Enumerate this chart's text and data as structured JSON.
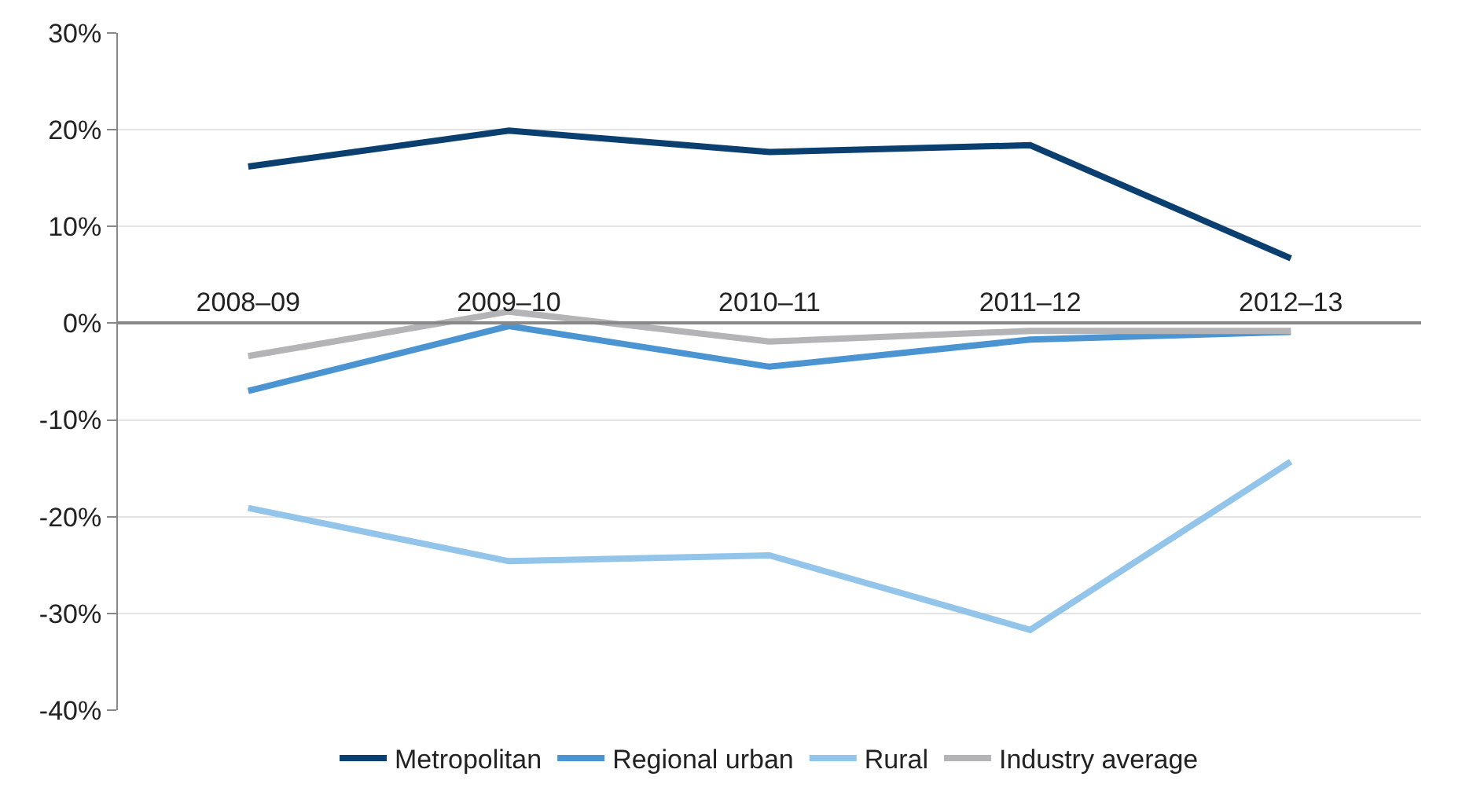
{
  "chart_data": {
    "type": "line",
    "categories": [
      "2008–09",
      "2009–10",
      "2010–11",
      "2011–12",
      "2012–13"
    ],
    "series": [
      {
        "name": "Metropolitan",
        "color": "#0b3f70",
        "values": [
          16.2,
          19.9,
          17.7,
          18.4,
          6.7
        ]
      },
      {
        "name": "Regional urban",
        "color": "#4b94d2",
        "values": [
          -7.0,
          -0.3,
          -4.5,
          -1.7,
          -0.9
        ]
      },
      {
        "name": "Rural",
        "color": "#93c4e9",
        "values": [
          -19.1,
          -24.6,
          -24.0,
          -31.7,
          -14.3
        ]
      },
      {
        "name": "Industry average",
        "color": "#b4b4b7",
        "values": [
          -3.4,
          1.2,
          -1.9,
          -0.8,
          -0.8
        ]
      }
    ],
    "ylim": [
      -40,
      30
    ],
    "yticks": [
      {
        "value": -40,
        "label": "-40%"
      },
      {
        "value": -30,
        "label": "-30%"
      },
      {
        "value": -20,
        "label": "-20%"
      },
      {
        "value": -10,
        "label": "-10%"
      },
      {
        "value": 0,
        "label": "0%"
      },
      {
        "value": 10,
        "label": "10%"
      },
      {
        "value": 20,
        "label": "20%"
      },
      {
        "value": 30,
        "label": "30%"
      }
    ],
    "grid": "y",
    "legend": "bottom",
    "marker": "none",
    "line_style": "solid"
  }
}
